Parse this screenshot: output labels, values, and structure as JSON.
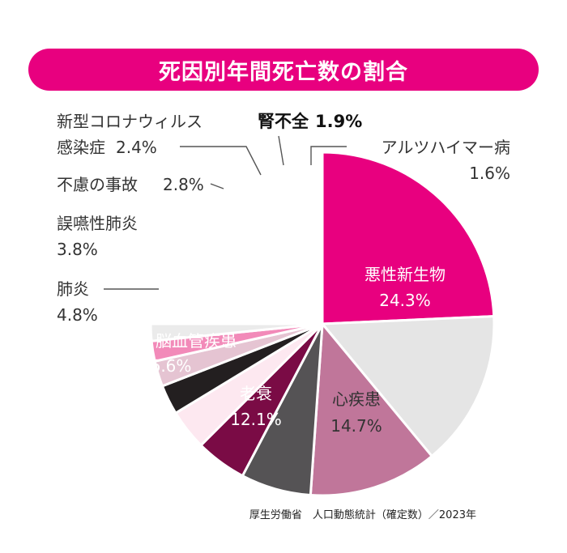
{
  "title": "死因別年間死亡数の割合",
  "source": "厚生労働省　人口動態統計（確定数）／2023年",
  "chart_data": {
    "type": "pie",
    "title": "死因別年間死亡数の割合",
    "start": "12 o'clock",
    "direction": "clockwise",
    "unit": "%",
    "slices": [
      {
        "label": "悪性新生物",
        "value": 24.3,
        "value_text": "24.3%",
        "color": "#e8007f"
      },
      {
        "label": "心疾患",
        "value": 14.7,
        "value_text": "14.7%",
        "color": "#e5e5e5"
      },
      {
        "label": "老衰",
        "value": 12.1,
        "value_text": "12.1%",
        "color": "#c0769a"
      },
      {
        "label": "脳血管疾患",
        "value": 6.6,
        "value_text": "6.6%",
        "color": "#555355"
      },
      {
        "label": "肺炎",
        "value": 4.8,
        "value_text": "4.8%",
        "color": "#7a0b45"
      },
      {
        "label": "誤嚥性肺炎",
        "value": 3.8,
        "value_text": "3.8%",
        "color": "#fde8f0"
      },
      {
        "label": "不慮の事故",
        "value": 2.8,
        "value_text": "2.8%",
        "color": "#231f20"
      },
      {
        "label": "新型コロナウィルス感染症",
        "label_lines": [
          "新型コロナウィルス",
          "感染症"
        ],
        "value": 2.4,
        "value_text": "2.4%",
        "color": "#e5c4d2"
      },
      {
        "label": "腎不全",
        "value": 1.9,
        "value_text": "1.9%",
        "color": "#f28ab9"
      },
      {
        "label": "アルツハイマー病",
        "value": 1.6,
        "value_text": "1.6%",
        "color": "#ebebeb"
      }
    ]
  }
}
